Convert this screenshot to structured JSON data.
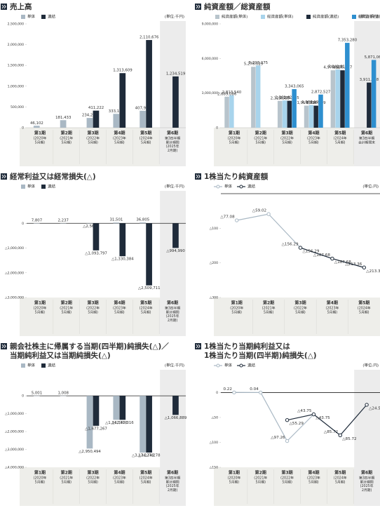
{
  "chart_data": [
    {
      "type": "bar",
      "title": [
        "売上高"
      ],
      "unit": "(単位:千円)",
      "categories": [
        "第1期",
        "第2期",
        "第3期",
        "第4期",
        "第5期",
        "第6期"
      ],
      "period_notes": [
        [
          "(2020年",
          "5月期)"
        ],
        [
          "(2021年",
          "5月期)"
        ],
        [
          "(2022年",
          "5月期)"
        ],
        [
          "(2023年",
          "5月期)"
        ],
        [
          "(2024年",
          "5月期)"
        ],
        [
          "第3四半期",
          "累計期間",
          "(2025年",
          "2月期)"
        ]
      ],
      "shaded_last": true,
      "ylim": [
        0,
        2500000
      ],
      "yticks": [
        0,
        {
          "value": 500000,
          "label": "500,000"
        },
        {
          "value": 1000000,
          "label": "1,000,000"
        },
        {
          "value": 1500000,
          "label": "1,500,000"
        },
        {
          "value": 2000000,
          "label": "2,000,000"
        },
        {
          "value": 2500000,
          "label": "2,500,000"
        }
      ],
      "series": [
        {
          "name": "単体",
          "color": "#a9b8c4",
          "values": [
            46102,
            181433,
            234268,
            333192,
            407924,
            null
          ],
          "value_labels": [
            "46,102",
            "181,433",
            "234,268",
            "333,192",
            "407,924",
            null
          ]
        },
        {
          "name": "連結",
          "color": "#1f2b3a",
          "values": [
            null,
            null,
            411222,
            1313609,
            2110676,
            1234519
          ],
          "value_labels": [
            null,
            null,
            "411,222",
            "1,313,609",
            "2,110,676",
            "1,234,519"
          ]
        }
      ]
    },
    {
      "type": "bar",
      "title": [
        "純資産額／総資産額"
      ],
      "unit": "(単位:千円)",
      "categories": [
        "第1期",
        "第2期",
        "第3期",
        "第4期",
        "第5期",
        "第6期"
      ],
      "period_notes": [
        [
          "(2020年",
          "5月期)"
        ],
        [
          "(2021年",
          "5月期)"
        ],
        [
          "(2022年",
          "5月期)"
        ],
        [
          "(2023年",
          "5月期)"
        ],
        [
          "(2024年",
          "5月期)"
        ],
        [
          "第3四半期",
          "会計期間末"
        ]
      ],
      "shaded_last": true,
      "ylim": [
        0,
        9000000
      ],
      "yticks": [
        0,
        {
          "value": 3000000,
          "label": "3,000,000"
        },
        {
          "value": 6000000,
          "label": "6,000,000"
        },
        {
          "value": 9000000,
          "label": "9,000,000"
        }
      ],
      "series": [
        {
          "name": "純資産額(単体)",
          "color": "#b8c4cc",
          "values": [
            2689086,
            5276029,
            2325535,
            1910309,
            4976627,
            null
          ],
          "value_labels": [
            "2,689,086",
            "5,276,029",
            "2,325,535",
            "1,910,309",
            "4,976,627",
            null
          ]
        },
        {
          "name": "総資産額(単体)",
          "color": "#a8d4ec",
          "values": [
            2813540,
            5393275,
            2361425,
            1967199,
            5042818,
            null
          ],
          "value_labels": [
            "2,813,540",
            "5,393,275",
            "2,361,425",
            "1,967,199",
            "5,042,818",
            null
          ]
        },
        {
          "name": "純資産額(連結)",
          "color": "#1f2b3a",
          "values": [
            null,
            null,
            2335535,
            1910309,
            4976627,
            3911858
          ],
          "value_labels": [
            null,
            null,
            "2,335,535",
            "1,910,309",
            "4,976,627",
            "3,911,858"
          ]
        },
        {
          "name": "総資産額(連結)",
          "color": "#2e8fcf",
          "values": [
            null,
            null,
            3343065,
            2872527,
            7353280,
            5871062
          ],
          "value_labels": [
            null,
            null,
            "3,343,065",
            "2,872,527",
            "7,353,280",
            "5,871,062"
          ]
        }
      ]
    },
    {
      "type": "bar",
      "title": [
        "経常利益又は経常損失(△)"
      ],
      "unit": "(単位:千円)",
      "categories": [
        "第1期",
        "第2期",
        "第3期",
        "第4期",
        "第5期",
        "第6期"
      ],
      "period_notes": [
        [
          "(2020年",
          "5月期)"
        ],
        [
          "(2021年",
          "5月期)"
        ],
        [
          "(2022年",
          "5月期)"
        ],
        [
          "(2023年",
          "5月期)"
        ],
        [
          "(2024年",
          "5月期)"
        ],
        [
          "第3四半期",
          "累計期間",
          "(2025年",
          "2月期)"
        ]
      ],
      "shaded_last": true,
      "ylim": [
        -3000000,
        1200000
      ],
      "yticks": [
        0,
        {
          "value": -1000000,
          "label": "△1,000,000"
        },
        {
          "value": -2000000,
          "label": "△2,000,000"
        },
        {
          "value": -3000000,
          "label": "△3,000,000"
        }
      ],
      "series": [
        {
          "name": "単体",
          "color": "#a9b8c4",
          "values": [
            7807,
            2237,
            -2568,
            31501,
            36805,
            null
          ],
          "value_labels": [
            "7,807",
            "2,237",
            "△2,568",
            "31,501",
            "36,805",
            null
          ]
        },
        {
          "name": "連結",
          "color": "#1f2b3a",
          "values": [
            null,
            null,
            -1093797,
            -1330384,
            -2509711,
            -994990
          ],
          "value_labels": [
            null,
            null,
            "△1,093,797",
            "△1,330,384",
            "△2,509,711",
            "△994,990"
          ]
        }
      ]
    },
    {
      "type": "line",
      "title": [
        "1株当たり純資産額"
      ],
      "unit": "(単位:円)",
      "categories": [
        "第1期",
        "第2期",
        "第3期",
        "第4期",
        "第5期"
      ],
      "period_notes": [
        [
          "(2020年",
          "5月期)"
        ],
        [
          "(2021年",
          "5月期)"
        ],
        [
          "(2022年",
          "5月期)"
        ],
        [
          "(2023年",
          "5月期)"
        ],
        [
          "(2024年",
          "5月期)"
        ]
      ],
      "shaded_last": false,
      "ylim": [
        -300,
        0
      ],
      "yticks": [
        {
          "value": -100,
          "label": "△100"
        },
        {
          "value": -200,
          "label": "△200"
        },
        {
          "value": -300,
          "label": "△300"
        }
      ],
      "series": [
        {
          "name": "単体",
          "color": "#a9b8c4",
          "values": [
            -77.08,
            -59.02,
            -156.29,
            -187.68,
            -213.36
          ],
          "value_labels": [
            "△77.08",
            "△59.02",
            "△156.29",
            "△187.68",
            "△213.36"
          ]
        },
        {
          "name": "連結",
          "color": "#1f2b3a",
          "values": [
            null,
            null,
            -156.29,
            -187.68,
            -213.36
          ],
          "value_labels": [
            null,
            null,
            "△156.29",
            "△187.68",
            "△213.36"
          ]
        }
      ]
    },
    {
      "type": "bar",
      "title": [
        "親会社株主に帰属する当期(四半期)純損失(△)／",
        "当期純利益又は当期純損失(△)"
      ],
      "unit": "(単位:千円)",
      "categories": [
        "第1期",
        "第2期",
        "第3期",
        "第4期",
        "第5期",
        "第6期"
      ],
      "period_notes": [
        [
          "(2020年",
          "5月期)"
        ],
        [
          "(2021年",
          "5月期)"
        ],
        [
          "(2022年",
          "5月期)"
        ],
        [
          "(2023年",
          "5月期)"
        ],
        [
          "(2024年",
          "5月期)"
        ],
        [
          "第3四半期",
          "累計期間",
          "(2025年",
          "2月期)"
        ]
      ],
      "shaded_last": true,
      "ylim": [
        -4000000,
        1300000
      ],
      "yticks": [
        0,
        {
          "value": -1000000,
          "label": "△1,000,000"
        },
        {
          "value": -2000000,
          "label": "△2,000,000"
        },
        {
          "value": -3000000,
          "label": "△3,000,000"
        },
        {
          "value": -4000000,
          "label": "△4,000,000"
        }
      ],
      "series": [
        {
          "name": "単体",
          "color": "#a9b8c4",
          "values": [
            5001,
            1008,
            -2950494,
            -1342316,
            -3174278,
            null
          ],
          "value_labels": [
            "5,001",
            "1,008",
            "△2,950,494",
            "△1,342,316",
            "△3,174,278",
            null
          ]
        },
        {
          "name": "連結",
          "color": "#1f2b3a",
          "values": [
            null,
            null,
            -1677267,
            -1342316,
            -3174278,
            -1066889
          ],
          "value_labels": [
            null,
            null,
            "△1,677,267",
            "△1,342,316",
            "△3,174,278",
            "△1,066,889"
          ]
        }
      ]
    },
    {
      "type": "line",
      "title": [
        "1株当たり当期純利益又は",
        "1株当たり当期(四半期)純損失(△)"
      ],
      "unit": "(単位:円)",
      "categories": [
        "第1期",
        "第2期",
        "第3期",
        "第4期",
        "第5期",
        "第6期"
      ],
      "period_notes": [
        [
          "(2020年",
          "5月期)"
        ],
        [
          "(2021年",
          "5月期)"
        ],
        [
          "(2022年",
          "5月期)"
        ],
        [
          "(2023年",
          "5月期)"
        ],
        [
          "(2024年",
          "5月期)"
        ],
        [
          "第3四半期",
          "累計期間",
          "(2025年",
          "2月期)"
        ]
      ],
      "shaded_last": true,
      "ylim": [
        -150,
        40
      ],
      "yticks": [
        0,
        {
          "value": -50,
          "label": "△50"
        },
        {
          "value": -100,
          "label": "△100"
        },
        {
          "value": -150,
          "label": "△150"
        }
      ],
      "series": [
        {
          "name": "単体",
          "color": "#a9b8c4",
          "values": [
            0.22,
            0.04,
            -97.26,
            -43.75,
            -85.72,
            null
          ],
          "value_labels": [
            "0.22",
            "0.04",
            "△97.26",
            "△43.75",
            "△85.72",
            null
          ]
        },
        {
          "name": "連結",
          "color": "#1f2b3a",
          "values": [
            null,
            null,
            -55.29,
            -43.75,
            -85.72,
            -24.59
          ],
          "value_labels": [
            null,
            null,
            "△55.29",
            "△43.75",
            "△85.72",
            "△24.59"
          ]
        }
      ]
    }
  ]
}
